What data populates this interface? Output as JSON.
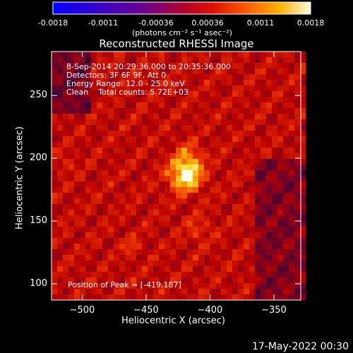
{
  "chart_data": {
    "type": "heatmap",
    "title": "Reconstructed RHESSI Image",
    "xlabel": "Heliocentric X (arcsec)",
    "ylabel": "Heliocentric Y (arcsec)",
    "xlim": [
      -524,
      -329
    ],
    "ylim": [
      87,
      285
    ],
    "xticks": [
      -500,
      -450,
      -400,
      -350
    ],
    "yticks": [
      100,
      150,
      200,
      250
    ],
    "colorbar": {
      "ticks": [
        "-0.0018",
        "-0.0011",
        "-0.00036",
        "0.00036",
        "0.0011",
        "0.0018"
      ],
      "range": [
        -0.0018,
        0.0018
      ],
      "units_label": "(photons cm⁻² s⁻¹ asec⁻²)",
      "colormap": "thermal"
    },
    "annotations": [
      "8-Sep-2014 20:29:36.000 to 20:35:36.000",
      "Detectors: 3F 6F 9F, Att 0",
      "Energy Range: 12.0 - 25.0 keV",
      "Clean    Total counts: 5.72E+03"
    ],
    "peak_label": "Position of Peak = [-419,187]",
    "peak": {
      "x": -419,
      "y": 187
    },
    "grid": false
  },
  "timestamp": "17-May-2022 00:30"
}
